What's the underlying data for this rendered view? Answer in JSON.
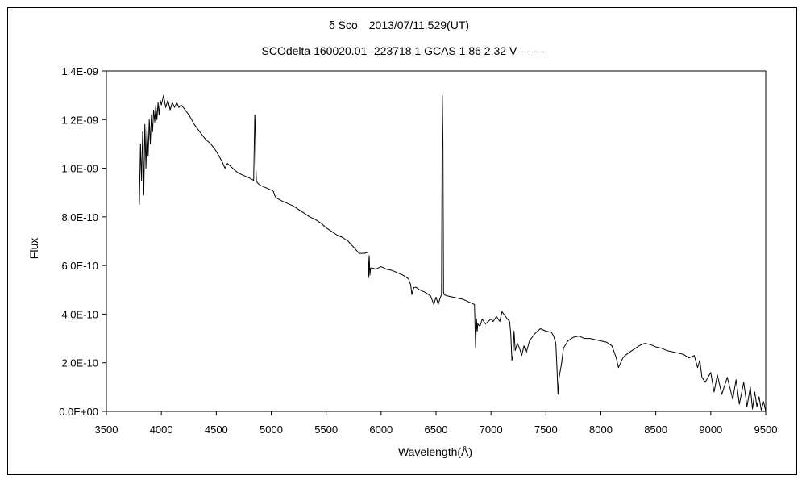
{
  "chart_data": {
    "type": "line",
    "title": "δ Sco　2013/07/11.529(UT)",
    "subtitle": "SCOdelta 160020.01 -223718.1 GCAS 1.86 2.32 V - - - -",
    "xlabel": "Wavelength(Å)",
    "ylabel": "Flux",
    "xlim": [
      3500,
      9500
    ],
    "ylim": [
      0,
      1.4e-09
    ],
    "x_ticks": [
      3500,
      4000,
      4500,
      5000,
      5500,
      6000,
      6500,
      7000,
      7500,
      8000,
      8500,
      9000,
      9500
    ],
    "x_tick_labels": [
      "3500",
      "4000",
      "4500",
      "5000",
      "5500",
      "6000",
      "6500",
      "7000",
      "7500",
      "8000",
      "8500",
      "9000",
      "9500"
    ],
    "y_ticks": [
      0,
      2e-10,
      4e-10,
      6e-10,
      8e-10,
      1e-09,
      1.2e-09,
      1.4e-09
    ],
    "y_tick_labels": [
      "0.0E+00",
      "2.0E-10",
      "4.0E-10",
      "6.0E-10",
      "8.0E-10",
      "1.0E-09",
      "1.2E-09",
      "1.4E-09"
    ],
    "grid": false,
    "legend": "none",
    "line_color": "#000000",
    "series": [
      {
        "x": [
          3800,
          3810,
          3820,
          3830,
          3840,
          3850,
          3860,
          3870,
          3880,
          3890,
          3900,
          3910,
          3920,
          3930,
          3940,
          3950,
          3960,
          3970,
          3980,
          3990,
          4000,
          4020,
          4040,
          4060,
          4080,
          4100,
          4120,
          4140,
          4160,
          4180,
          4200,
          4250,
          4300,
          4350,
          4400,
          4450,
          4500,
          4550,
          4580,
          4600,
          4650,
          4700,
          4750,
          4800,
          4840,
          4850,
          4855,
          4861,
          4866,
          4875,
          4900,
          4950,
          5000,
          5020,
          5030,
          5040,
          5060,
          5100,
          5150,
          5200,
          5250,
          5300,
          5350,
          5400,
          5450,
          5500,
          5550,
          5600,
          5650,
          5700,
          5750,
          5800,
          5850,
          5880,
          5886,
          5892,
          5898,
          5905,
          5920,
          5950,
          6000,
          6050,
          6100,
          6150,
          6200,
          6250,
          6270,
          6280,
          6290,
          6300,
          6320,
          6350,
          6400,
          6450,
          6480,
          6500,
          6520,
          6540,
          6550,
          6557,
          6563,
          6568,
          6575,
          6600,
          6650,
          6700,
          6750,
          6800,
          6850,
          6860,
          6868,
          6875,
          6880,
          6900,
          6920,
          6950,
          7000,
          7020,
          7050,
          7080,
          7100,
          7150,
          7170,
          7180,
          7190,
          7200,
          7210,
          7220,
          7240,
          7260,
          7280,
          7300,
          7320,
          7350,
          7400,
          7450,
          7500,
          7550,
          7570,
          7590,
          7600,
          7610,
          7620,
          7640,
          7660,
          7700,
          7750,
          7800,
          7850,
          7900,
          7950,
          8000,
          8050,
          8100,
          8140,
          8160,
          8180,
          8200,
          8220,
          8250,
          8300,
          8350,
          8400,
          8450,
          8500,
          8550,
          8600,
          8650,
          8700,
          8750,
          8800,
          8850,
          8880,
          8900,
          8920,
          8950,
          9000,
          9030,
          9060,
          9100,
          9150,
          9200,
          9230,
          9260,
          9300,
          9330,
          9360,
          9380,
          9400,
          9420,
          9440,
          9460,
          9480,
          9500
        ],
        "y": [
          8.5e-10,
          1.1e-09,
          9.5e-10,
          1.15e-09,
          8.9e-10,
          1.18e-09,
          1e-09,
          1.17e-09,
          1.05e-09,
          1.2e-09,
          1.1e-09,
          1.22e-09,
          1.15e-09,
          1.24e-09,
          1.19e-09,
          1.26e-09,
          1.2e-09,
          1.27e-09,
          1.22e-09,
          1.28e-09,
          1.26e-09,
          1.3e-09,
          1.25e-09,
          1.28e-09,
          1.24e-09,
          1.27e-09,
          1.25e-09,
          1.27e-09,
          1.25e-09,
          1.26e-09,
          1.25e-09,
          1.22e-09,
          1.18e-09,
          1.15e-09,
          1.12e-09,
          1.1e-09,
          1.07e-09,
          1.03e-09,
          1e-09,
          1.02e-09,
          1e-09,
          9.8e-10,
          9.7e-10,
          9.6e-10,
          9.5e-10,
          1.22e-09,
          1.18e-09,
          1e-09,
          9.45e-10,
          9.4e-10,
          9.3e-10,
          9.2e-10,
          9.1e-10,
          9.05e-10,
          8.9e-10,
          8.8e-10,
          8.75e-10,
          8.65e-10,
          8.55e-10,
          8.45e-10,
          8.3e-10,
          8.15e-10,
          8e-10,
          7.9e-10,
          7.75e-10,
          7.55e-10,
          7.4e-10,
          7.25e-10,
          7.15e-10,
          7e-10,
          6.75e-10,
          6.5e-10,
          6.5e-10,
          6.55e-10,
          5.5e-10,
          6.4e-10,
          5.6e-10,
          5.9e-10,
          5.9e-10,
          5.85e-10,
          5.95e-10,
          5.85e-10,
          5.8e-10,
          5.7e-10,
          5.6e-10,
          5.45e-10,
          5.2e-10,
          4.8e-10,
          5e-10,
          5.1e-10,
          5.1e-10,
          5e-10,
          4.9e-10,
          4.75e-10,
          4.4e-10,
          4.7e-10,
          4.4e-10,
          4.7e-10,
          4.8e-10,
          1.3e-09,
          1.1e-09,
          4.9e-10,
          4.8e-10,
          4.75e-10,
          4.7e-10,
          4.65e-10,
          4.6e-10,
          4.5e-10,
          4.4e-10,
          2.6e-10,
          3.8e-10,
          3.3e-10,
          3.6e-10,
          3.5e-10,
          3.8e-10,
          3.6e-10,
          3.8e-10,
          3.7e-10,
          3.9e-10,
          3.7e-10,
          4.1e-10,
          3.8e-10,
          3.7e-10,
          3.2e-10,
          2.1e-10,
          2.3e-10,
          3.3e-10,
          2.5e-10,
          2.8e-10,
          2.6e-10,
          2.3e-10,
          2.7e-10,
          2.4e-10,
          2.9e-10,
          3.2e-10,
          3.4e-10,
          3.3e-10,
          3.25e-10,
          3.1e-10,
          2.8e-10,
          1.8e-10,
          7e-11,
          1.4e-10,
          1.9e-10,
          2.6e-10,
          2.9e-10,
          3.05e-10,
          3.1e-10,
          3e-10,
          3e-10,
          2.95e-10,
          2.9e-10,
          2.85e-10,
          2.7e-10,
          2.2e-10,
          1.8e-10,
          2e-10,
          2.2e-10,
          2.3e-10,
          2.4e-10,
          2.55e-10,
          2.7e-10,
          2.8e-10,
          2.75e-10,
          2.65e-10,
          2.6e-10,
          2.5e-10,
          2.45e-10,
          2.4e-10,
          2.35e-10,
          2.2e-10,
          2.3e-10,
          1.8e-10,
          2.1e-10,
          1.4e-10,
          1.2e-10,
          1.6e-10,
          8e-11,
          1.5e-10,
          7e-11,
          1.4e-10,
          5e-11,
          1.3e-10,
          3e-11,
          1.2e-10,
          2e-11,
          1e-10,
          1e-11,
          8e-11,
          2e-11,
          6e-11,
          5e-12,
          4e-11,
          0.0
        ]
      }
    ]
  }
}
